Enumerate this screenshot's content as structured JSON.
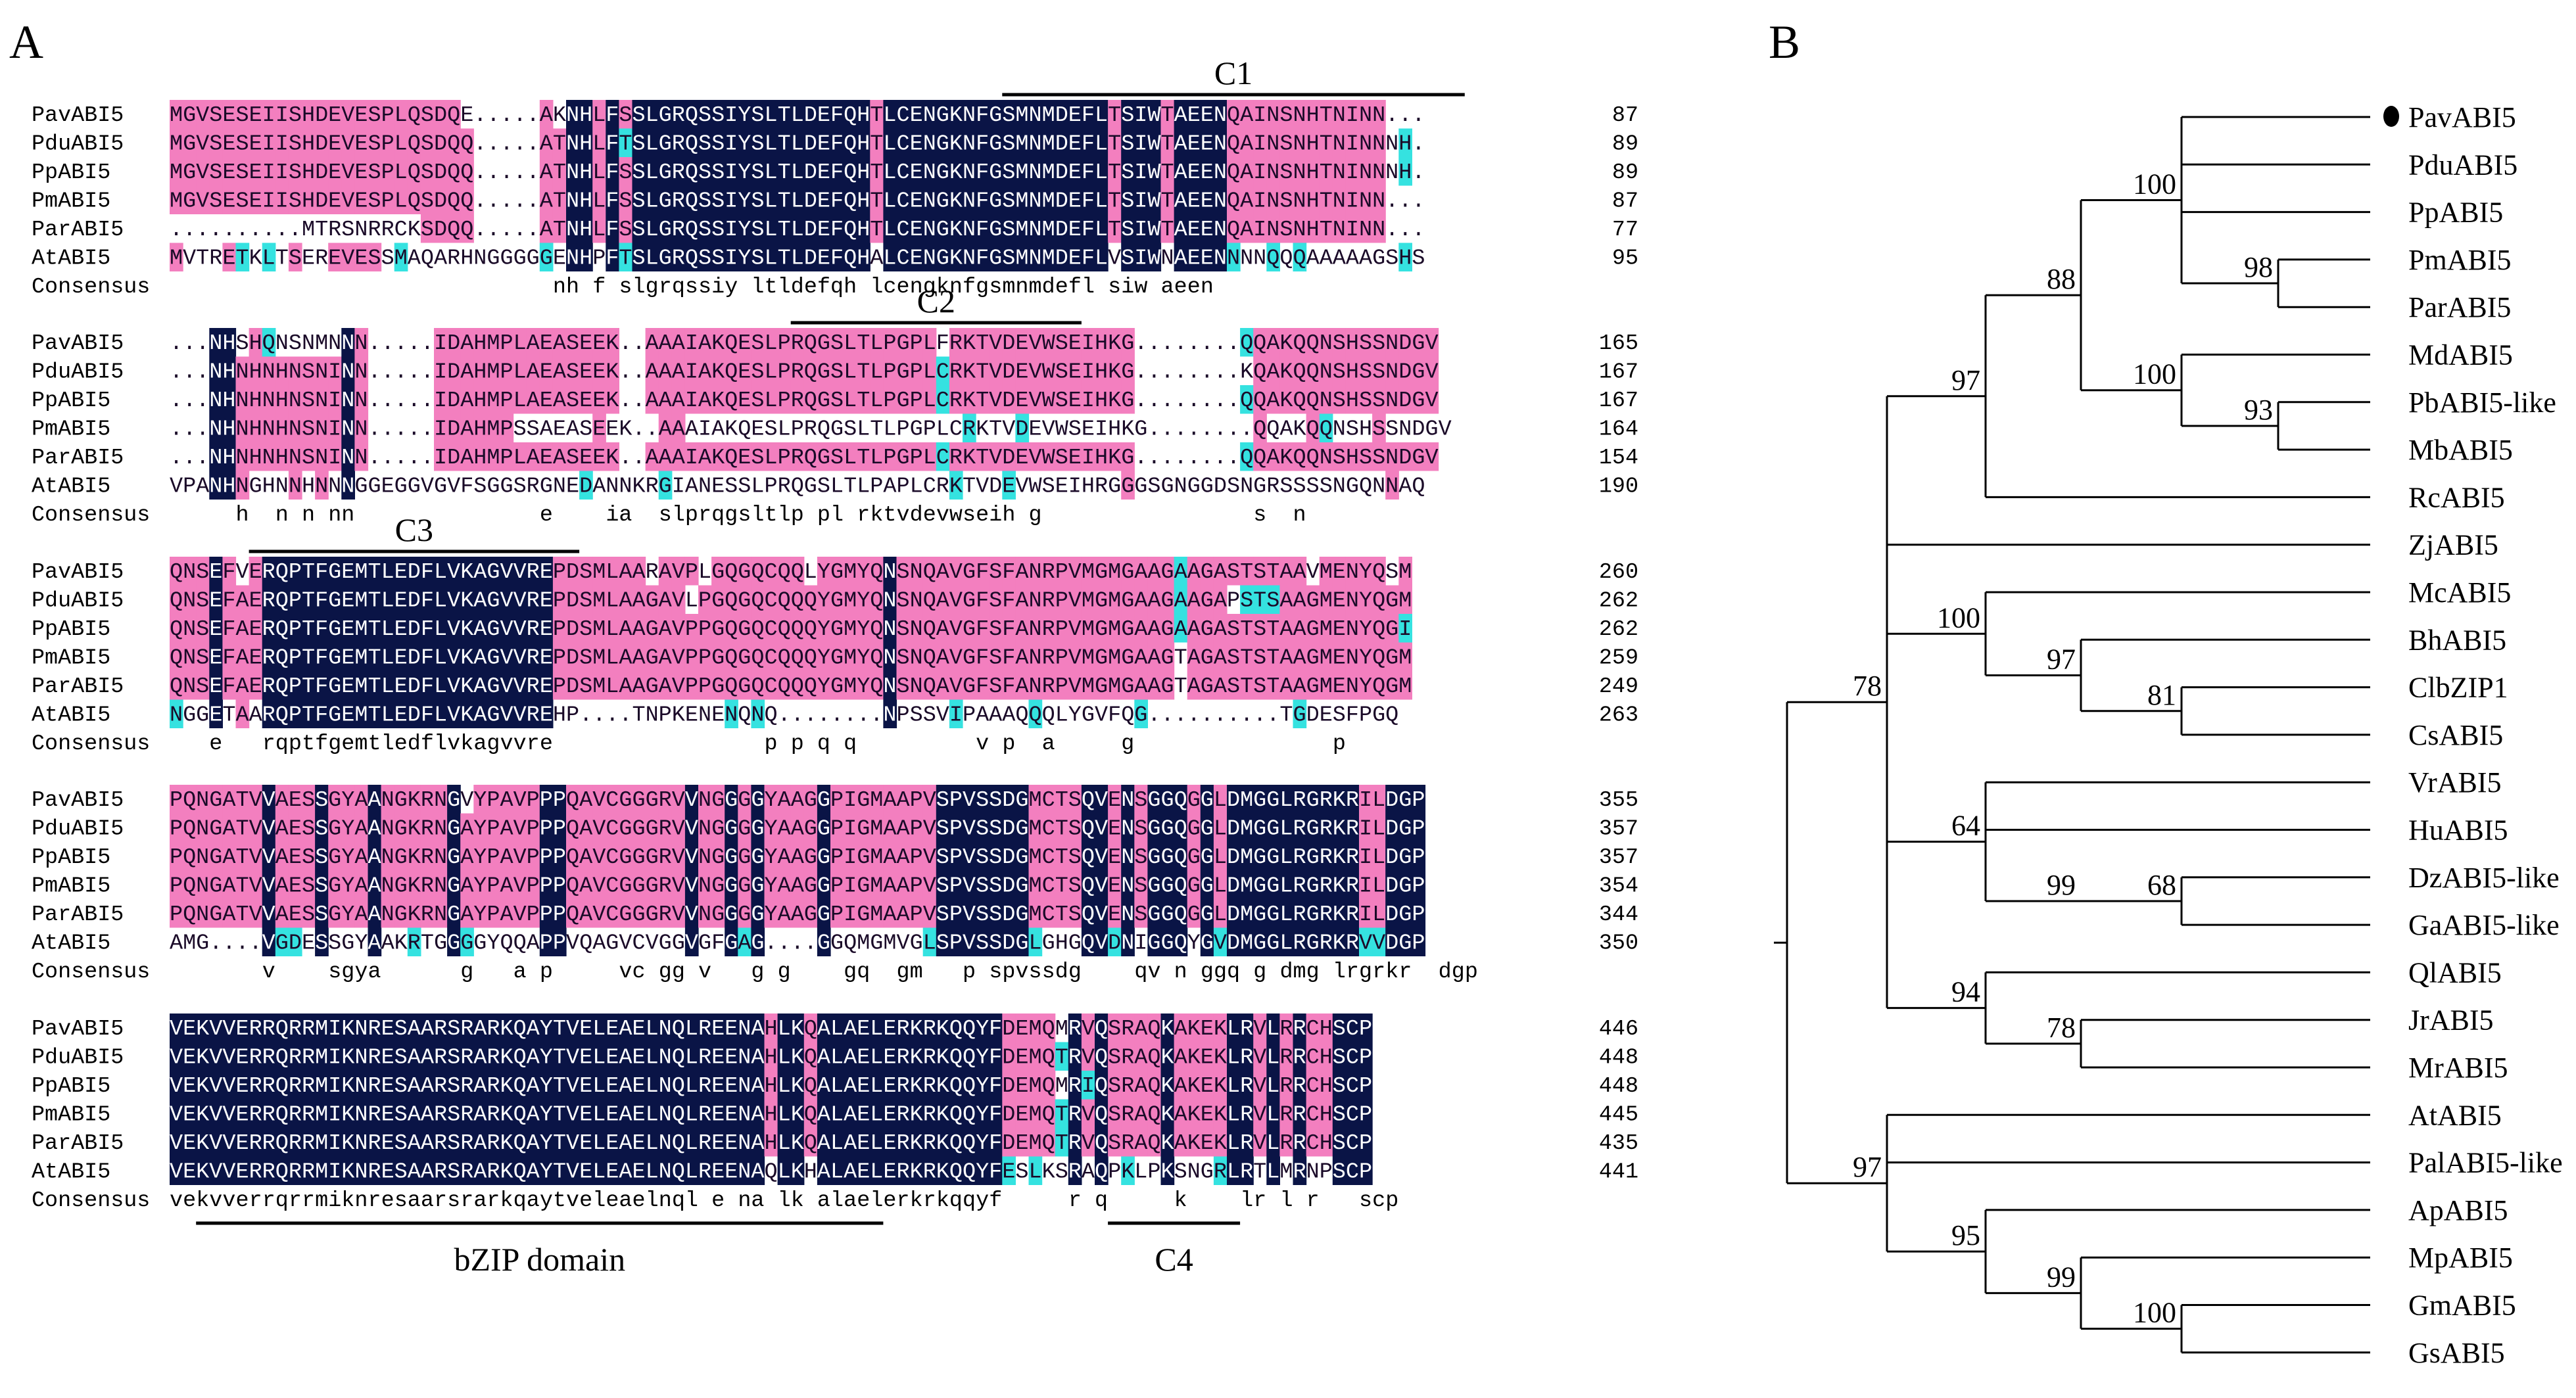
{
  "panel_a": {
    "label": "A",
    "consensus_label": "Consensus",
    "colors": {
      "identical": "#0a1446",
      "high": "#f37fbf",
      "medium": "#35e2e0",
      "text_dark": "#ffffff",
      "text_pink": "#1a0a28"
    },
    "blocks": [
      {
        "annotations": [
          {
            "label": "C1",
            "start": 63,
            "end": 98
          }
        ],
        "under_annotations": [],
        "sequences": [
          {
            "name": "PavABI5",
            "seq": "MGVSESEIISHDEVESPLQSDQE.....AKNHLFSSLGRQSSIYSLTLDEFQHTLCENGKNFGSMNMDEFLTSIWTAEENQAINSNHTNINN...",
            "end": "87"
          },
          {
            "name": "PduABI5",
            "seq": "MGVSESEIISHDEVESPLQSDQQ.....ATNHLFTSLGRQSSIYSLTLDEFQHTLCENGKNFGSMNMDEFLTSIWTAEENQAINSNHTNINNNH.",
            "end": "89"
          },
          {
            "name": "PpABI5",
            "seq": "MGVSESEIISHDEVESPLQSDQQ.....ATNHLFSSLGRQSSIYSLTLDEFQHTLCENGKNFGSMNMDEFLTSIWTAEENQAINSNHTNINNNH.",
            "end": "89"
          },
          {
            "name": "PmABI5",
            "seq": "MGVSESEIISHDEVESPLQSDQQ.....ATNHLFSSLGRQSSIYSLTLDEFQHTLCENGKNFGSMNMDEFLTSIWTAEENQAINSNHTNINN...",
            "end": "87"
          },
          {
            "name": "ParABI5",
            "seq": "..........MTRSNRRCKSDQQ.....ATNHLFSSLGRQSSIYSLTLDEFQHTLCENGKNFGSMNMDEFLTSIWTAEENQAINSNHTNINN...",
            "end": "77"
          },
          {
            "name": "AtABI5",
            "seq": "MVTRETKLTSEREVESSMAQARHNGGGGGENHPFTSLGRQSSIYSLTLDEFQHALCENGKNFGSMNMDEFLVSIWNAEENNNNQQQAAAAAGSHS",
            "end": "95"
          }
        ],
        "consensus": "                             nh f slgrqssiy ltldefqh lcengknfgsmnmdefl siw aeen               "
      },
      {
        "annotations": [
          {
            "label": "C2",
            "start": 47,
            "end": 69
          }
        ],
        "under_annotations": [],
        "sequences": [
          {
            "name": "PavABI5",
            "seq": "...NHSHQNSNMNNN.....IDAHMPLAEASEEK..AAAIAKQESLPRQGSLTLPGPLFRKTVDEVWSEIHKG........QQAKQQNSHSSNDGV",
            "end": "165"
          },
          {
            "name": "PduABI5",
            "seq": "...NHNHNHNSNINN.....IDAHMPLAEASEEK..AAAIAKQESLPRQGSLTLPGPLCRKTVDEVWSEIHKG........KQAKQQNSHSSNDGV",
            "end": "167"
          },
          {
            "name": "PpABI5",
            "seq": "...NHNHNHNSNINN.....IDAHMPLAEASEEK..AAAIAKQESLPRQGSLTLPGPLCRKTVDEVWSEIHKG........QQAKQQNSHSSNDGV",
            "end": "167"
          },
          {
            "name": "PmABI5",
            "seq": "...NHNHNHNSNINN.....IDAHMPSSAEASEEK..AAAIAKQESLPRQGSLTLPGPLCRKTVDEVWSEIHKG........QQAKQQNSHSSNDGV",
            "end": "164"
          },
          {
            "name": "ParABI5",
            "seq": "...NHNHNHNSNINN.....IDAHMPLAEASEEK..AAAIAKQESLPRQGSLTLPGPLCRKTVDEVWSEIHKG........QQAKQQNSHSSNDGV",
            "end": "154"
          },
          {
            "name": "AtABI5",
            "seq": "VPANHNGHNNHNNNGGEGGVGVFSGGSRGNEDANNKRGIANESSLPRQGSLTLPAPLCRKTVDEVWSEIHRGGGSGNGGDSNGRSSSSNGQNNAQ",
            "end": "190"
          }
        ],
        "consensus": "     h  n n nn              e    ia  slprqgsltlp pl rktvdevwseih g                s  n  "
      },
      {
        "annotations": [
          {
            "label": "C3",
            "start": 6,
            "end": 31
          }
        ],
        "under_annotations": [],
        "sequences": [
          {
            "name": "PavABI5",
            "seq": "QNSEFVERQPTFGEMTLEDFLVKAGVVREPDSMLAARAVPLGQGQCQQLYGMYQNSNQAVGFSFANRPVMGMGAAGAAGASTSTAAVMENYQSM",
            "end": "260"
          },
          {
            "name": "PduABI5",
            "seq": "QNSEFAERQPTFGEMTLEDFLVKAGVVREPDSMLAAGAVLPGQGQCQQQYGMYQNSNQAVGFSFANRPVMGMGAAGAAGAPSTSAAGMENYQGM",
            "end": "262"
          },
          {
            "name": "PpABI5",
            "seq": "QNSEFAERQPTFGEMTLEDFLVKAGVVREPDSMLAAGAVPPGQGQCQQQYGMYQNSNQAVGFSFANRPVMGMGAAGAAGASTSTAAGMENYQGI",
            "end": "262"
          },
          {
            "name": "PmABI5",
            "seq": "QNSEFAERQPTFGEMTLEDFLVKAGVVREPDSMLAAGAVPPGQGQCQQQYGMYQNSNQAVGFSFANRPVMGMGAAGTAGASTSTAAGMENYQGM",
            "end": "259"
          },
          {
            "name": "ParABI5",
            "seq": "QNSEFAERQPTFGEMTLEDFLVKAGVVREPDSMLAAGAVPPGQGQCQQQYGMYQNSNQAVGFSFANRPVMGMGAAGTAGASTSTAAGMENYQGM",
            "end": "249"
          },
          {
            "name": "AtABI5",
            "seq": "NGGETAARQPTFGEMTLEDFLVKAGVVREHP....TNPKENENQNQ........NPSSVIPAAAQQQLYGVFQG..........TGDESFPGQ",
            "end": "263"
          }
        ],
        "consensus": "   e   rqptfgemtledflvkagvvre                p p q q         v p  a     g               p     "
      },
      {
        "annotations": [],
        "under_annotations": [],
        "sequences": [
          {
            "name": "PavABI5",
            "seq": "PQNGATVVAESSGYAANGKRNGVYPAVPPPQAVCGGGRVVNGGGGYAAGGPIGMAAPVSPVSSDGMCTSQVENSGGQGGLDMGGLRGRKRILDGP",
            "end": "355"
          },
          {
            "name": "PduABI5",
            "seq": "PQNGATVVAESSGYAANGKRNGAYPAVPPPQAVCGGGRVVNGGGGYAAGGPIGMAAPVSPVSSDGMCTSQVENSGGQGGLDMGGLRGRKRILDGP",
            "end": "357"
          },
          {
            "name": "PpABI5",
            "seq": "PQNGATVVAESSGYAANGKRNGAYPAVPPPQAVCGGGRVVNGGGGYAAGGPIGMAAPVSPVSSDGMCTSQVENSGGQGGLDMGGLRGRKRILDGP",
            "end": "357"
          },
          {
            "name": "PmABI5",
            "seq": "PQNGATVVAESSGYAANGKRNGAYPAVPPPQAVCGGGRVVNGGGGYAAGGPIGMAAPVSPVSSDGMCTSQVENSGGQGGLDMGGLRGRKRILDGP",
            "end": "354"
          },
          {
            "name": "ParABI5",
            "seq": "PQNGATVVAESSGYAANGKRNGAYPAVPPPQAVCGGGRVVNGGGGYAAGGPIGMAAPVSPVSSDGMCTSQVENSGGQGGLDMGGLRGRKRILDGP",
            "end": "344"
          },
          {
            "name": "AtABI5",
            "seq": "AMG....VGDESSGYAAKRTGGGGYQQAPPVQAGVCVGGVGFGAG....GGQMGMVGLSPVSSDGLGHGQVDNIGGQYGVDMGGLRGRKRVVDGP",
            "end": "350"
          }
        ],
        "consensus": "       v    sgya      g   a p     vc gg v   g g    gq  gm   p spvssdg    qv n ggq g dmg lrgrkr  dgp"
      },
      {
        "annotations": [],
        "under_annotations": [
          {
            "label": "bZIP domain",
            "start": 2,
            "end": 54
          },
          {
            "label": "C4",
            "start": 71,
            "end": 81
          }
        ],
        "sequences": [
          {
            "name": "PavABI5",
            "seq": "VEKVVERRQRRMIKNRESAARSRARKQAYTVELEAELNQLREENAHLKQALAELERKRKQQYFDEMQMRVQSRAQKAKEKLRVLRRCHSCP",
            "end": "446"
          },
          {
            "name": "PduABI5",
            "seq": "VEKVVERRQRRMIKNRESAARSRARKQAYTVELEAELNQLREENAHLKQALAELERKRKQQYFDEMQTRVQSRAQKAKEKLRVLRRCHSCP",
            "end": "448"
          },
          {
            "name": "PpABI5",
            "seq": "VEKVVERRQRRMIKNRESAARSRARKQAYTVELEAELNQLREENAHLKQALAELERKRKQQYFDEMQMRIQSRAQKAKEKLRVLRRCHSCP",
            "end": "448"
          },
          {
            "name": "PmABI5",
            "seq": "VEKVVERRQRRMIKNRESAARSRARKQAYTVELEAELNQLREENAHLKQALAELERKRKQQYFDEMQTRVQSRAQKAKEKLRVLRRCHSCP",
            "end": "445"
          },
          {
            "name": "ParABI5",
            "seq": "VEKVVERRQRRMIKNRESAARSRARKQAYTVELEAELNQLREENAHLKQALAELERKRKQQYFDEMQTRVQSRAQKAKEKLRVLRRCHSCP",
            "end": "435"
          },
          {
            "name": "AtABI5",
            "seq": "VEKVVERRQRRMIKNRESAARSRARKQAYTVELEAELNQLREENAQLKHALAELERKRKQQYFESLKSRAQPKLPKSNGRLRTLMRNPSCP",
            "end": "441"
          }
        ],
        "consensus": "vekvverrqrrmiknresaarsrarkqaytveleaelnql e na lk alaelerkrkqqyf     r q     k    lr l r   scp"
      }
    ]
  },
  "panel_b": {
    "label": "B",
    "marker_color": "#000000",
    "taxa": [
      "PavABI5",
      "PduABI5",
      "PpABI5",
      "PmABI5",
      "ParABI5",
      "MdABI5",
      "PbABI5-like",
      "MbABI5",
      "RcABI5",
      "ZjABI5",
      "McABI5",
      "BhABI5",
      "ClbZIP1",
      "CsABI5",
      "VrABI5",
      "HuABI5",
      "DzABI5-like",
      "GaABI5-like",
      "QlABI5",
      "JrABI5",
      "MrABI5",
      "AtABI5",
      "PalABI5-like",
      "ApABI5",
      "MpABI5",
      "GmABI5",
      "GsABI5"
    ],
    "highlighted_taxon": "PavABI5",
    "tree": {
      "children": [
        {
          "bootstrap": "78",
          "children": [
            {
              "bootstrap": "97",
              "children": [
                {
                  "bootstrap": "88",
                  "children": [
                    {
                      "bootstrap": "100",
                      "children": [
                        {
                          "taxon": 0
                        },
                        {
                          "taxon": 1
                        },
                        {
                          "taxon": 2
                        },
                        {
                          "bootstrap": "98",
                          "children": [
                            {
                              "taxon": 3
                            },
                            {
                              "taxon": 4
                            }
                          ]
                        }
                      ]
                    },
                    {
                      "bootstrap": "100",
                      "children": [
                        {
                          "taxon": 5
                        },
                        {
                          "bootstrap": "93",
                          "children": [
                            {
                              "taxon": 6
                            },
                            {
                              "taxon": 7
                            }
                          ]
                        }
                      ]
                    }
                  ]
                },
                {
                  "taxon": 8
                }
              ]
            },
            {
              "taxon": 9
            },
            {
              "bootstrap": "100",
              "children": [
                {
                  "taxon": 10
                },
                {
                  "bootstrap": "97",
                  "children": [
                    {
                      "taxon": 11
                    },
                    {
                      "bootstrap": "81",
                      "children": [
                        {
                          "taxon": 12
                        },
                        {
                          "taxon": 13
                        }
                      ]
                    }
                  ]
                }
              ]
            },
            {
              "bootstrap": "64",
              "children": [
                {
                  "taxon": 14
                },
                {
                  "taxon": 15
                },
                {
                  "bootstrap": "99",
                  "children": [
                    {
                      "bootstrap": "68",
                      "children": [
                        {
                          "taxon": 16
                        },
                        {
                          "taxon": 17
                        }
                      ]
                    }
                  ]
                }
              ]
            },
            {
              "bootstrap": "94",
              "children": [
                {
                  "taxon": 18
                },
                {
                  "bootstrap": "78",
                  "children": [
                    {
                      "taxon": 19
                    },
                    {
                      "taxon": 20
                    }
                  ]
                }
              ]
            }
          ]
        },
        {
          "bootstrap": "97",
          "children": [
            {
              "taxon": 21
            },
            {
              "taxon": 22
            },
            {
              "bootstrap": "95",
              "children": [
                {
                  "taxon": 23
                },
                {
                  "bootstrap": "99",
                  "children": [
                    {
                      "taxon": 24
                    },
                    {
                      "bootstrap": "100",
                      "children": [
                        {
                          "taxon": 25
                        },
                        {
                          "taxon": 26
                        }
                      ]
                    }
                  ]
                }
              ]
            }
          ]
        }
      ]
    }
  }
}
